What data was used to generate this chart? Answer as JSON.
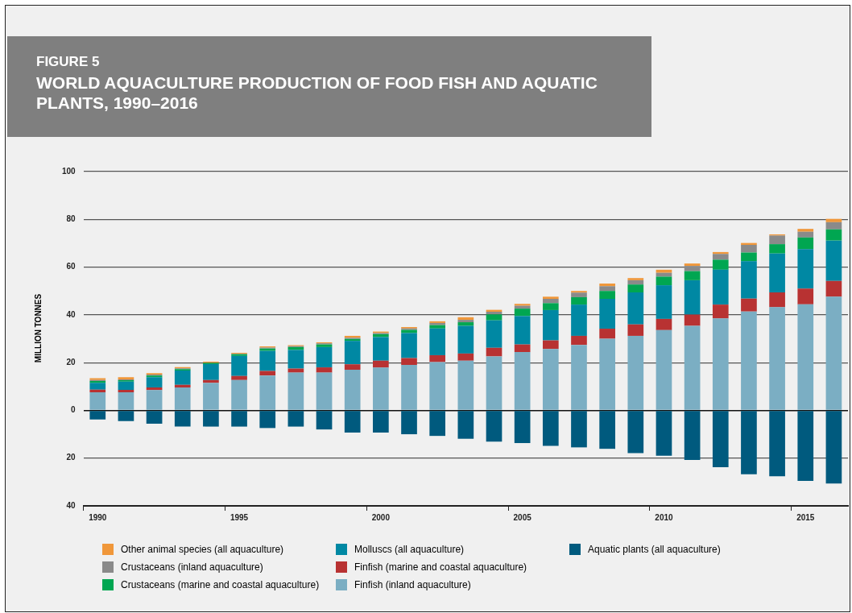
{
  "chart_data": {
    "type": "bar",
    "subtitle": "FIGURE 5",
    "title": "WORLD AQUACULTURE PRODUCTION OF FOOD FISH AND AQUATIC PLANTS, 1990–2016",
    "ylabel": "MILLION TONNES",
    "categories": [
      "1990",
      null,
      null,
      null,
      null,
      "1995",
      null,
      null,
      null,
      null,
      "2000",
      null,
      null,
      null,
      null,
      "2005",
      null,
      null,
      null,
      null,
      "2010",
      null,
      null,
      null,
      null,
      "2015",
      null
    ],
    "stacked": true,
    "series": [
      {
        "name": "Finfish (inland aquaculture)",
        "color": "#7baec3",
        "values": [
          7.6,
          7.6,
          8.5,
          9.6,
          11.5,
          12.7,
          14.6,
          15.8,
          15.8,
          17.0,
          17.9,
          19.0,
          20.2,
          20.8,
          22.6,
          24.4,
          25.7,
          27.4,
          30.0,
          31.2,
          33.6,
          35.4,
          38.5,
          41.4,
          43.2,
          44.4,
          47.6
        ]
      },
      {
        "name": "Finfish (marine and coastal aquaculture)",
        "color": "#b83232",
        "values": [
          1.1,
          1.0,
          1.1,
          1.1,
          1.2,
          1.7,
          1.9,
          1.7,
          2.2,
          2.3,
          2.9,
          2.9,
          2.9,
          3.0,
          3.6,
          3.2,
          3.6,
          3.8,
          4.2,
          4.8,
          4.7,
          4.7,
          5.8,
          5.4,
          6.2,
          6.6,
          6.6
        ]
      },
      {
        "name": "Molluscs (all aquaculture)",
        "color": "#0088a3",
        "values": [
          2.8,
          3.4,
          4.3,
          6.0,
          6.7,
          8.4,
          8.4,
          7.8,
          8.5,
          9.8,
          9.9,
          10.5,
          11.2,
          11.6,
          11.5,
          11.9,
          12.7,
          13.1,
          12.5,
          13.4,
          14.1,
          14.4,
          14.6,
          15.7,
          16.3,
          16.5,
          16.9
        ]
      },
      {
        "name": "Crustaceans (marine and coastal aquaculture)",
        "color": "#00a651",
        "values": [
          0.8,
          0.6,
          0.7,
          0.6,
          0.5,
          0.7,
          1.0,
          1.2,
          1.1,
          0.8,
          1.2,
          1.3,
          1.4,
          1.5,
          2.5,
          3.1,
          2.9,
          3.1,
          3.3,
          3.3,
          3.6,
          3.8,
          4.2,
          3.6,
          3.9,
          4.9,
          4.7
        ]
      },
      {
        "name": "Crustaceans (inland aquaculture)",
        "color": "#8a8a8a",
        "values": [
          0.4,
          0.4,
          0.4,
          0.3,
          null,
          0.2,
          0.4,
          0.4,
          0.5,
          0.5,
          0.5,
          0.6,
          0.9,
          1.0,
          1.1,
          1.2,
          1.8,
          1.9,
          2.0,
          1.8,
          1.6,
          2.2,
          2.4,
          3.2,
          3.6,
          2.4,
          3.0
        ]
      },
      {
        "name": "Other animal species (all aquaculture)",
        "color": "#f0973a",
        "values": [
          0.8,
          0.9,
          0.6,
          0.5,
          0.5,
          0.4,
          0.5,
          0.4,
          0.4,
          0.8,
          0.6,
          0.6,
          0.7,
          1.1,
          0.8,
          0.8,
          0.9,
          0.7,
          1.1,
          0.9,
          1.3,
          1.0,
          0.8,
          0.8,
          0.5,
          1.2,
          1.4
        ]
      },
      {
        "name": "Aquatic plants (all aquaculture)",
        "color": "#005a7e",
        "values": [
          -3.8,
          -4.5,
          -5.6,
          -6.8,
          -6.8,
          -6.8,
          -7.4,
          -6.8,
          -8.0,
          -9.3,
          -9.3,
          -10.0,
          -10.7,
          -11.9,
          -13.1,
          -13.7,
          -14.9,
          -15.5,
          -16.1,
          -17.9,
          -19.0,
          -20.8,
          -23.8,
          -26.8,
          -27.6,
          -29.5,
          -30.6
        ]
      }
    ],
    "ylim": [
      -40,
      100
    ],
    "yticks": [
      {
        "value": -40,
        "label": "40"
      },
      {
        "value": -20,
        "label": "20"
      },
      0,
      20,
      40,
      60,
      80,
      100
    ],
    "grid": "y",
    "legend": "bottom"
  }
}
